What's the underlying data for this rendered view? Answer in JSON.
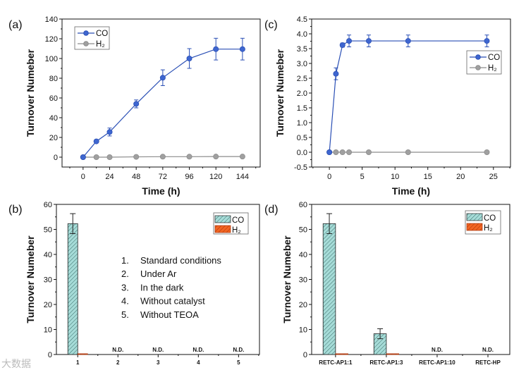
{
  "colors": {
    "co_line": "#2a4fb5",
    "co_marker": "#3e66d0",
    "h2_line": "#8c8c8c",
    "h2_marker": "#a0a0a0",
    "co_bar": "#a6dcd8",
    "h2_bar": "#f26522",
    "axis": "#111111"
  },
  "watermark": "大数据",
  "chart_data": [
    {
      "id": "a",
      "panel_label": "(a)",
      "type": "line",
      "xlabel": "Time (h)",
      "ylabel": "Turnover Numeber",
      "xlim": [
        -19,
        160
      ],
      "ylim": [
        -10,
        140
      ],
      "xticks": [
        0,
        24,
        48,
        72,
        96,
        120,
        144
      ],
      "yticks": [
        0,
        20,
        40,
        60,
        80,
        100,
        120,
        140
      ],
      "xminor": 12,
      "yminor": 10,
      "legend": {
        "placement": "top-left",
        "entries": [
          "CO",
          "H₂"
        ]
      },
      "series": [
        {
          "name": "CO",
          "x": [
            0,
            12,
            24,
            48,
            72,
            96,
            120,
            144
          ],
          "y": [
            0,
            16,
            25.5,
            54,
            80.5,
            100,
            109.5,
            109.5
          ],
          "err": [
            0,
            1,
            4,
            4,
            8,
            10,
            11,
            11
          ]
        },
        {
          "name": "H₂",
          "x": [
            0,
            12,
            24,
            48,
            72,
            96,
            120,
            144
          ],
          "y": [
            0,
            0,
            0,
            0.3,
            0.5,
            0.5,
            0.6,
            0.6
          ],
          "err": [
            0,
            0,
            0,
            0,
            0,
            0,
            0,
            0
          ]
        }
      ]
    },
    {
      "id": "c",
      "panel_label": "(c)",
      "type": "line",
      "xlabel": "Time (h)",
      "ylabel": "Turnover Numeber",
      "xlim": [
        -2.7,
        27.6
      ],
      "ylim": [
        -0.5,
        4.5
      ],
      "xticks": [
        0,
        5,
        10,
        15,
        20,
        25
      ],
      "yticks": [
        -0.5,
        0.0,
        0.5,
        1.0,
        1.5,
        2.0,
        2.5,
        3.0,
        3.5,
        4.0,
        4.5
      ],
      "ytick_labels": [
        "-0.5",
        "0.0",
        "0.5",
        "1.0",
        "1.5",
        "2.0",
        "2.5",
        "3.0",
        "3.5",
        "4.0",
        "4.5"
      ],
      "xminor": 2.5,
      "yminor": 0.25,
      "legend": {
        "placement": "top-right",
        "entries": [
          "CO",
          "H₂"
        ]
      },
      "series": [
        {
          "name": "CO",
          "x": [
            0,
            1,
            2,
            3,
            6,
            12,
            24
          ],
          "y": [
            0,
            2.65,
            3.62,
            3.76,
            3.76,
            3.76,
            3.76
          ],
          "err": [
            0,
            0.2,
            0.07,
            0.2,
            0.2,
            0.2,
            0.2
          ]
        },
        {
          "name": "H₂",
          "x": [
            0,
            1,
            2,
            3,
            6,
            12,
            24
          ],
          "y": [
            0,
            0,
            0,
            0,
            0,
            0,
            0
          ],
          "err": [
            0,
            0,
            0,
            0,
            0,
            0,
            0
          ]
        }
      ]
    },
    {
      "id": "b",
      "panel_label": "(b)",
      "type": "bar",
      "xlabel": "",
      "ylabel": "Turnover Numeber",
      "categories": [
        "1",
        "2",
        "3",
        "4",
        "5"
      ],
      "xlim": [
        -0.53,
        4.52
      ],
      "ylim": [
        0,
        60
      ],
      "yticks": [
        0,
        10,
        20,
        30,
        40,
        50,
        60
      ],
      "yminor": 5,
      "legend": {
        "placement": "top-right",
        "entries": [
          "CO",
          "H₂"
        ]
      },
      "series": [
        {
          "name": "CO",
          "values": [
            52.3,
            0,
            0,
            0,
            0
          ],
          "err": [
            4,
            0,
            0,
            0,
            0
          ]
        },
        {
          "name": "H₂",
          "values": [
            0.3,
            0,
            0,
            0,
            0
          ],
          "err": [
            0,
            0,
            0,
            0,
            0
          ]
        }
      ],
      "not_detected": [
        false,
        true,
        true,
        true,
        true
      ],
      "nd_label": "N.D.",
      "annotations": [
        {
          "num": "1.",
          "text": "Standard conditions"
        },
        {
          "num": "2.",
          "text": "Under Ar"
        },
        {
          "num": "3.",
          "text": "In the dark"
        },
        {
          "num": "4.",
          "text": "Without catalyst"
        },
        {
          "num": "5.",
          "text": "Without TEOA"
        }
      ]
    },
    {
      "id": "d",
      "panel_label": "(d)",
      "type": "bar",
      "xlabel": "",
      "ylabel": "Turnover Numeber",
      "categories": [
        "RETC-AP1:1",
        "RETC-AP1:3",
        "RETC-AP1:10",
        "RETC-HP"
      ],
      "xlim": [
        -0.47,
        3.43
      ],
      "ylim": [
        0,
        60
      ],
      "yticks": [
        0,
        10,
        20,
        30,
        40,
        50,
        60
      ],
      "yminor": 5,
      "legend": {
        "placement": "top-right",
        "entries": [
          "CO",
          "H₂"
        ]
      },
      "series": [
        {
          "name": "CO",
          "values": [
            52.3,
            8.3,
            0,
            0
          ],
          "err": [
            4,
            2,
            0,
            0
          ]
        },
        {
          "name": "H₂",
          "values": [
            0.3,
            0.3,
            0,
            0
          ],
          "err": [
            0,
            0,
            0,
            0
          ]
        }
      ],
      "not_detected": [
        false,
        false,
        true,
        true
      ],
      "nd_label": "N.D.",
      "annotations": []
    }
  ]
}
